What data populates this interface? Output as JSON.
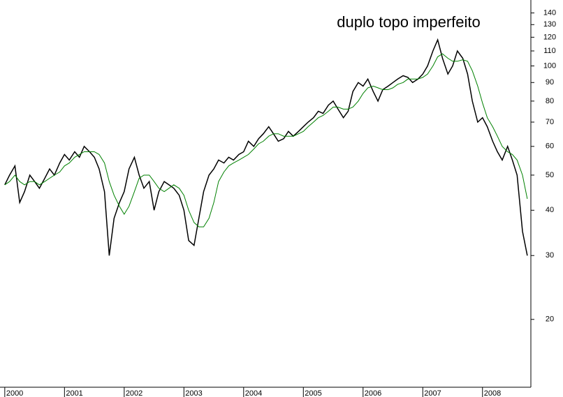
{
  "chart_data": {
    "type": "line",
    "title": "duplo topo imperfeito",
    "log_scale": true,
    "grid": false,
    "x": [
      2000.0,
      2000.08,
      2000.17,
      2000.25,
      2000.33,
      2000.42,
      2000.5,
      2000.58,
      2000.67,
      2000.75,
      2000.83,
      2000.92,
      2001.0,
      2001.08,
      2001.17,
      2001.25,
      2001.33,
      2001.42,
      2001.5,
      2001.58,
      2001.67,
      2001.75,
      2001.83,
      2001.92,
      2002.0,
      2002.08,
      2002.17,
      2002.25,
      2002.33,
      2002.42,
      2002.5,
      2002.58,
      2002.67,
      2002.75,
      2002.83,
      2002.92,
      2003.0,
      2003.08,
      2003.17,
      2003.25,
      2003.33,
      2003.42,
      2003.5,
      2003.58,
      2003.67,
      2003.75,
      2003.83,
      2003.92,
      2004.0,
      2004.08,
      2004.17,
      2004.25,
      2004.33,
      2004.42,
      2004.5,
      2004.58,
      2004.67,
      2004.75,
      2004.83,
      2004.92,
      2005.0,
      2005.08,
      2005.17,
      2005.25,
      2005.33,
      2005.42,
      2005.5,
      2005.58,
      2005.67,
      2005.75,
      2005.83,
      2005.92,
      2006.0,
      2006.08,
      2006.17,
      2006.25,
      2006.33,
      2006.42,
      2006.5,
      2006.58,
      2006.67,
      2006.75,
      2006.83,
      2006.92,
      2007.0,
      2007.08,
      2007.17,
      2007.25,
      2007.33,
      2007.42,
      2007.5,
      2007.58,
      2007.67,
      2007.75,
      2007.83,
      2007.92,
      2008.0,
      2008.08,
      2008.17,
      2008.25,
      2008.33,
      2008.42,
      2008.5,
      2008.58,
      2008.67,
      2008.75
    ],
    "series": [
      {
        "color": "#000000",
        "values": [
          47,
          50,
          53,
          42,
          45,
          50,
          48,
          46,
          49,
          52,
          50,
          54,
          57,
          55,
          58,
          56,
          60,
          58,
          56,
          52,
          45,
          30,
          38,
          42,
          45,
          52,
          56,
          50,
          46,
          48,
          40,
          45,
          48,
          47,
          46,
          44,
          40,
          33,
          32,
          38,
          45,
          50,
          52,
          55,
          54,
          56,
          55,
          57,
          58,
          62,
          60,
          63,
          65,
          68,
          65,
          62,
          63,
          66,
          64,
          66,
          68,
          70,
          72,
          75,
          74,
          78,
          80,
          76,
          72,
          75,
          85,
          90,
          88,
          92,
          85,
          80,
          86,
          88,
          90,
          92,
          94,
          93,
          90,
          92,
          95,
          100,
          110,
          118,
          105,
          95,
          100,
          110,
          105,
          95,
          80,
          70,
          72,
          68,
          62,
          58,
          55,
          60,
          55,
          50,
          35,
          30
        ]
      },
      {
        "color": "#008000",
        "values": [
          47,
          48,
          50,
          48,
          47,
          48,
          48,
          47,
          48,
          49,
          50,
          51,
          53,
          54,
          56,
          57,
          58,
          58,
          58,
          57,
          54,
          48,
          44,
          41,
          39,
          41,
          45,
          49,
          50,
          50,
          48,
          46,
          45,
          46,
          47,
          46,
          44,
          40,
          37,
          36,
          36,
          38,
          42,
          48,
          51,
          53,
          54,
          55,
          56,
          57,
          59,
          61,
          62,
          64,
          65,
          65,
          64,
          64,
          64,
          65,
          66,
          68,
          70,
          72,
          73,
          75,
          77,
          77,
          76,
          76,
          77,
          80,
          84,
          87,
          88,
          87,
          86,
          86,
          87,
          89,
          90,
          92,
          92,
          92,
          93,
          95,
          100,
          106,
          108,
          105,
          103,
          103,
          104,
          103,
          97,
          88,
          79,
          72,
          68,
          64,
          60,
          58,
          57,
          55,
          50,
          43
        ]
      }
    ],
    "xlim": [
      1999.92,
      2008.81
    ],
    "xticks": [
      2000,
      2001,
      2002,
      2003,
      2004,
      2005,
      2006,
      2007,
      2008
    ],
    "ylim": [
      13,
      152
    ],
    "yticks": [
      20,
      30,
      40,
      50,
      60,
      70,
      80,
      90,
      100,
      110,
      120,
      130,
      140
    ]
  }
}
